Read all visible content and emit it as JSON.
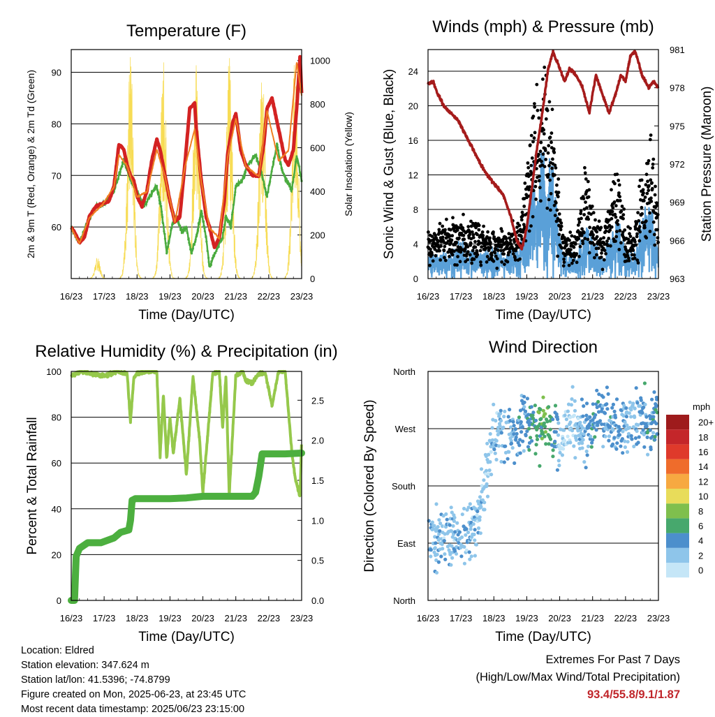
{
  "colors": {
    "red_temp": "#d32222",
    "orange_temp": "#f07f22",
    "green_td": "#4aab3f",
    "yellow_solar": "#f7dc55",
    "maroon_pressure": "#a51b1b",
    "blue_wind": "#5aa0d8",
    "black_gust": "#000000",
    "rh_line": "#95c84b",
    "precip": "#4caf3f",
    "extremes_value": "#c0252a"
  },
  "x_ticks": [
    "16/23",
    "17/23",
    "18/23",
    "19/23",
    "20/23",
    "21/23",
    "22/23",
    "23/23"
  ],
  "x_axis_label": "Time (Day/UTC)",
  "chart_data": [
    {
      "id": "temperature",
      "type": "line",
      "title": "Temperature (F)",
      "ylabel": "2m & 9m T (Red, Orange) & 2m Td (Green)",
      "y2label": "Solar Insolation (Yellow)",
      "xlabel": "Time (Day/UTC)",
      "x_unit": "day",
      "ylim": [
        50,
        94.4
      ],
      "yticks": [
        60,
        70,
        80,
        90
      ],
      "y2lim": [
        0,
        1050
      ],
      "y2ticks": [
        0,
        200,
        400,
        600,
        800,
        1000
      ],
      "grid": true,
      "series": [
        {
          "name": "2m T",
          "color": "#d32222",
          "width": 5,
          "x": [
            0,
            0.1,
            0.25,
            0.4,
            0.55,
            0.75,
            0.95,
            1.15,
            1.3,
            1.45,
            1.6,
            1.7,
            1.8,
            1.9,
            2.0,
            2.15,
            2.3,
            2.45,
            2.6,
            2.7,
            2.85,
            3.0,
            3.15,
            3.3,
            3.45,
            3.6,
            3.75,
            3.8,
            3.95,
            4.1,
            4.2,
            4.35,
            4.5,
            4.65,
            4.75,
            4.9,
            5.0,
            5.15,
            5.3,
            5.5,
            5.7,
            5.85,
            5.95,
            6.1,
            6.3,
            6.5,
            6.6,
            6.75,
            6.85,
            6.95,
            7.0
          ],
          "y": [
            60,
            59,
            57,
            58,
            62,
            64,
            64.5,
            65,
            68,
            76,
            75,
            72,
            70,
            69,
            66,
            64,
            67,
            73,
            77,
            75,
            70,
            65,
            61,
            62,
            72,
            83,
            84,
            79,
            69,
            62,
            60,
            56,
            58,
            65,
            74,
            80,
            82,
            75,
            72,
            70,
            70,
            76,
            83,
            85,
            79,
            73,
            72,
            75,
            83,
            93,
            86
          ]
        },
        {
          "name": "9m T",
          "color": "#f07f22",
          "width": 2,
          "x": [
            0,
            0.25,
            0.55,
            0.95,
            1.3,
            1.45,
            1.7,
            2.0,
            2.3,
            2.6,
            2.85,
            3.15,
            3.45,
            3.75,
            3.95,
            4.2,
            4.5,
            4.75,
            5.0,
            5.3,
            5.7,
            5.95,
            6.3,
            6.6,
            6.85,
            7.0
          ],
          "y": [
            59.8,
            56.8,
            61.8,
            64.3,
            67.8,
            74,
            71.8,
            65.8,
            66.8,
            75,
            69.8,
            60.8,
            71.5,
            79,
            68.8,
            59.8,
            57.8,
            73.5,
            81,
            71.8,
            69.8,
            82.5,
            72.8,
            74.8,
            92,
            85.5
          ]
        },
        {
          "name": "2m Td",
          "color": "#4aab3f",
          "width": 2.5,
          "dots": true,
          "x": [
            0,
            0.25,
            0.5,
            0.75,
            1.0,
            1.3,
            1.6,
            1.8,
            2.0,
            2.2,
            2.4,
            2.6,
            2.75,
            2.9,
            3.05,
            3.2,
            3.35,
            3.5,
            3.65,
            3.8,
            3.95,
            4.1,
            4.2,
            4.3,
            4.45,
            4.6,
            4.7,
            4.85,
            5.0,
            5.2,
            5.35,
            5.5,
            5.6,
            5.8,
            5.95,
            6.1,
            6.25,
            6.4,
            6.55,
            6.7,
            6.85,
            7.0
          ],
          "y": [
            60,
            57,
            61,
            64,
            64.5,
            67,
            73,
            69,
            67,
            64,
            66,
            68,
            63,
            55,
            60,
            62,
            59,
            60,
            55,
            58,
            63,
            58,
            52,
            54,
            56,
            58,
            62,
            60,
            68,
            69,
            72,
            73,
            74,
            70,
            66,
            71,
            76,
            71,
            69,
            67,
            74,
            69
          ]
        }
      ],
      "y2_series": [
        {
          "name": "Solar Insolation",
          "color": "#f7dc55",
          "peaks": [
            {
              "day": 0.8,
              "w": 0.15,
              "v": 100
            },
            {
              "day": 1.8,
              "w": 0.18,
              "v": 1040
            },
            {
              "day": 2.8,
              "w": 0.18,
              "v": 1000
            },
            {
              "day": 3.8,
              "w": 0.18,
              "v": 1000
            },
            {
              "day": 4.8,
              "w": 0.18,
              "v": 1020
            },
            {
              "day": 5.8,
              "w": 0.18,
              "v": 970
            },
            {
              "day": 6.8,
              "w": 0.18,
              "v": 1030
            }
          ]
        }
      ]
    },
    {
      "id": "winds_pressure",
      "type": "scatter",
      "title": "Winds (mph) & Pressure (mb)",
      "ylabel": "Sonic Wind & Gust (Blue, Black)",
      "y2label": "Station Pressure (Maroon)",
      "xlabel": "Time (Day/UTC)",
      "x_unit": "day",
      "ylim": [
        0,
        26.5
      ],
      "yticks": [
        0,
        4,
        8,
        12,
        16,
        20,
        24
      ],
      "y2lim": [
        963,
        981
      ],
      "y2ticks": [
        963,
        966,
        969,
        972,
        975,
        978,
        981
      ],
      "grid": true,
      "series": [
        {
          "name": "Sonic Wind",
          "color": "#5aa0d8",
          "kind": "line",
          "x": [
            0,
            0.5,
            1.0,
            1.5,
            2.0,
            2.5,
            2.8,
            3.0,
            3.2,
            3.4,
            3.6,
            3.8,
            3.95,
            4.1,
            4.5,
            4.8,
            5.0,
            5.3,
            5.5,
            5.8,
            6.0,
            6.3,
            6.6,
            6.8,
            7.0
          ],
          "y": [
            1.5,
            1.8,
            2.2,
            1.8,
            2.0,
            1.8,
            2.5,
            3.5,
            6,
            7.5,
            8.5,
            7,
            4,
            1.5,
            1.5,
            3.5,
            2.5,
            1.5,
            2.5,
            4,
            1.5,
            2,
            5,
            4.5,
            2
          ]
        },
        {
          "name": "Gust",
          "color": "#000000",
          "kind": "dots",
          "x": [
            0,
            0.5,
            1.0,
            1.5,
            2.0,
            2.5,
            2.8,
            3.0,
            3.2,
            3.4,
            3.6,
            3.8,
            3.95,
            4.1,
            4.5,
            4.8,
            5.0,
            5.3,
            5.5,
            5.8,
            6.0,
            6.3,
            6.6,
            6.8,
            7.0
          ],
          "y": [
            3.5,
            4.2,
            4.7,
            4.3,
            4.1,
            3.9,
            5,
            8,
            13,
            16,
            17,
            14,
            8,
            3.5,
            3.5,
            9,
            5,
            3.5,
            6,
            9,
            3.5,
            4.5,
            10,
            11,
            4
          ]
        }
      ],
      "y2_series": [
        {
          "name": "Station Pressure",
          "color": "#a51b1b",
          "kind": "line",
          "x": [
            0,
            0.15,
            0.3,
            0.5,
            0.7,
            0.9,
            1.1,
            1.3,
            1.5,
            1.7,
            1.9,
            2.1,
            2.3,
            2.5,
            2.7,
            2.85,
            3.0,
            3.15,
            3.3,
            3.5,
            3.65,
            3.8,
            4.0,
            4.15,
            4.3,
            4.5,
            4.7,
            4.9,
            5.1,
            5.3,
            5.5,
            5.7,
            5.85,
            6.0,
            6.15,
            6.3,
            6.5,
            6.7,
            6.85,
            7.0
          ],
          "y": [
            978.3,
            978.5,
            977.5,
            976.5,
            976.0,
            975.5,
            974.5,
            973.5,
            972.5,
            971.5,
            970.8,
            970.2,
            969.5,
            968.0,
            966.0,
            965.3,
            967.0,
            970.0,
            973.0,
            976.5,
            979.5,
            980.8,
            979.5,
            978.5,
            979.5,
            979.0,
            978.0,
            976.0,
            979.0,
            977.5,
            976.0,
            977.5,
            979.0,
            978.5,
            980.5,
            980.8,
            979.0,
            978.0,
            978.5,
            978.0
          ]
        }
      ]
    },
    {
      "id": "rh_precip",
      "type": "line",
      "title": "Relative Humidity (%) & Precipitation (in)",
      "ylabel": "Percent & Total Rainfall",
      "xlabel": "Time (Day/UTC)",
      "x_unit": "day",
      "ylim": [
        0,
        100
      ],
      "yticks": [
        0,
        20,
        40,
        60,
        80,
        100
      ],
      "y2lim": [
        0,
        2.86
      ],
      "y2ticks": [
        0.0,
        0.5,
        1.0,
        1.5,
        2.0,
        2.5
      ],
      "grid": true,
      "series": [
        {
          "name": "Relative Humidity",
          "color": "#95c84b",
          "width": 4,
          "x": [
            0,
            0.3,
            0.6,
            1.0,
            1.4,
            1.7,
            1.8,
            1.9,
            2.0,
            2.3,
            2.6,
            2.7,
            2.8,
            2.9,
            3.0,
            3.1,
            3.3,
            3.5,
            3.7,
            3.9,
            4.0,
            4.3,
            4.5,
            4.6,
            4.7,
            4.8,
            5.0,
            5.2,
            5.3,
            5.5,
            5.7,
            5.9,
            6.1,
            6.3,
            6.5,
            6.7,
            6.8,
            6.95,
            7.0
          ],
          "y": [
            98,
            100,
            99,
            98,
            100,
            99,
            78,
            97,
            99,
            100,
            100,
            63,
            90,
            62,
            80,
            64,
            88,
            55,
            98,
            70,
            47,
            99,
            100,
            75,
            98,
            46,
            98,
            100,
            96,
            95,
            99,
            99,
            85,
            100,
            100,
            65,
            54,
            45,
            70
          ]
        },
        {
          "name": "Total Rainfall",
          "color": "#4caf3f",
          "width": 10,
          "axis": "y2",
          "x": [
            0,
            0.1,
            0.15,
            0.25,
            0.5,
            0.9,
            1.3,
            1.5,
            1.75,
            1.8,
            1.85,
            1.95,
            2.5,
            3.0,
            3.5,
            4.0,
            4.5,
            5.0,
            5.5,
            5.6,
            5.7,
            5.8,
            6.0,
            6.5,
            7.0
          ],
          "y": [
            0.0,
            0.0,
            0.55,
            0.65,
            0.72,
            0.72,
            0.78,
            0.85,
            0.88,
            1.0,
            1.25,
            1.27,
            1.27,
            1.27,
            1.28,
            1.3,
            1.3,
            1.3,
            1.3,
            1.35,
            1.55,
            1.83,
            1.83,
            1.83,
            1.84
          ]
        }
      ]
    },
    {
      "id": "wind_direction",
      "type": "scatter",
      "title": "Wind Direction",
      "ylabel": "Direction (Colored By Speed)",
      "xlabel": "Time (Day/UTC)",
      "x_unit": "day",
      "yticks": [
        "North",
        "East",
        "South",
        "West",
        "North"
      ],
      "ylim": [
        0,
        360
      ],
      "grid": true,
      "legend": {
        "position": "right",
        "unit": "mph",
        "levels": [
          "0",
          "2",
          "4",
          "6",
          "8",
          "10",
          "12",
          "14",
          "16",
          "18",
          "20+"
        ],
        "colors": [
          "#c5e6f7",
          "#8ec5ea",
          "#4c8fcc",
          "#47a86d",
          "#7fbf4d",
          "#e8dc5a",
          "#f7a941",
          "#ef6c2b",
          "#df3a2b",
          "#c4262a",
          "#9e1b1c"
        ]
      },
      "series": [
        {
          "name": "direction (deg)",
          "x": [
            0,
            0.5,
            1.0,
            1.5,
            2.0,
            2.5,
            3.0,
            3.3,
            3.6,
            3.9,
            4.0,
            4.3,
            4.6,
            4.9,
            5.2,
            5.5,
            5.8,
            6.1,
            6.4,
            6.7,
            7.0
          ],
          "y": [
            90,
            100,
            95,
            120,
            260,
            265,
            270,
            275,
            280,
            265,
            240,
            280,
            270,
            265,
            300,
            280,
            270,
            275,
            280,
            285,
            290
          ],
          "speed_mph": [
            3,
            2,
            3,
            2,
            2,
            3,
            4,
            6,
            7,
            4,
            1,
            1,
            2,
            4,
            4,
            3,
            4,
            2,
            3,
            4,
            4
          ]
        }
      ]
    }
  ],
  "info": {
    "location": "Location: Eldred",
    "elevation": "Station elevation: 347.624 m",
    "latlon": "Station lat/lon: 41.5396; -74.8799",
    "created": "Figure created on Mon, 2025-06-23, at 23:45 UTC",
    "recent": "Most recent data timestamp: 2025/06/23 23:15:00"
  },
  "extremes": {
    "title": "Extremes For Past 7 Days",
    "subtitle": "(High/Low/Max Wind/Total Precipitation)",
    "values": "93.4/55.8/9.1/1.87"
  }
}
